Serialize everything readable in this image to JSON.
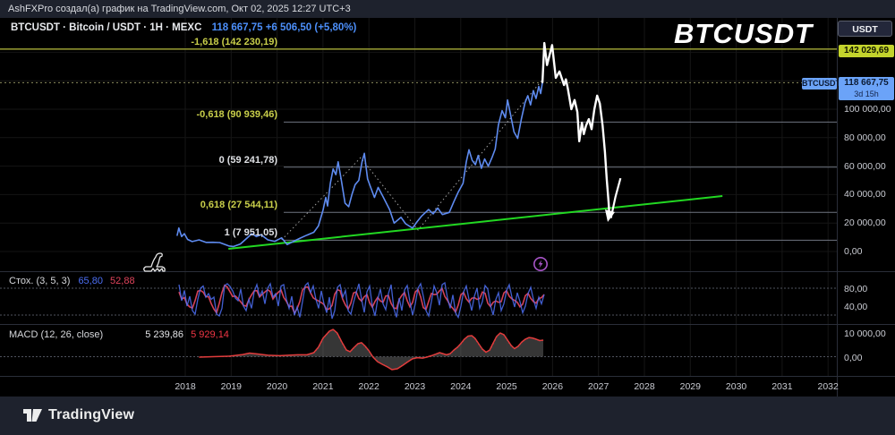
{
  "topbar": {
    "attribution": "AshFXPro создал(а) график на TradingView.com, Окт 02, 2025 12:27 UTC+3"
  },
  "symbol_row": {
    "title": "BTCUSDT · Bitcoin / USDT · 1H · MEXC",
    "quote": "118 667,75  +6 506,50 (+5,80%)"
  },
  "watermark": "BTCUSDT",
  "currency_button": "USDT",
  "price_axis": {
    "alert_tag": {
      "text": "142 029,69",
      "bg": "#c3d32c"
    },
    "symbol_tag": "BTCUSDT",
    "price_tag": {
      "price": "118 667,75",
      "countdown": "3d 15h",
      "bg": "#6ba3f8"
    },
    "ticks": [
      {
        "text": "100 000,00",
        "price": 100000
      },
      {
        "text": "80 000,00",
        "price": 80000
      },
      {
        "text": "60 000,00",
        "price": 60000
      },
      {
        "text": "40 000,00",
        "price": 40000
      },
      {
        "text": "20 000,00",
        "price": 20000
      },
      {
        "text": "0,00",
        "price": 0
      }
    ]
  },
  "fib_levels": [
    {
      "label": "-1,618 (142 230,19)",
      "price": 142230.19,
      "color": "#c9cf4a",
      "full_width": true
    },
    {
      "label": "-0,618 (90 939,46)",
      "price": 90939.46,
      "color": "#c9cf4a",
      "full_width": false
    },
    {
      "label": "0 (59 241,78)",
      "price": 59241.78,
      "color": "#dfe1e5",
      "full_width": false
    },
    {
      "label": "0,618 (27 544,11)",
      "price": 27544.11,
      "color": "#c9cf4a",
      "full_width": false
    },
    {
      "label": "1 (7 951,05)",
      "price": 7951.05,
      "color": "#dfe1e5",
      "full_width": false
    }
  ],
  "current_price_line": {
    "price": 118667.75
  },
  "stoch_panel": {
    "label": "Стох. (3, 5, 3)",
    "k_value": "65,80",
    "d_value": "52,88",
    "k_color": "#4c6ff5",
    "d_color": "#e0445c",
    "ticks": [
      {
        "text": "80,00",
        "v": 80
      },
      {
        "text": "40,00",
        "v": 40
      }
    ],
    "bands": [
      80,
      20
    ]
  },
  "macd_panel": {
    "label": "MACD (12, 26, close)",
    "hist_value": "5 239,86",
    "signal_value": "5 929,14",
    "hist_value_color": "#e4e5e8",
    "signal_value_color": "#f23645",
    "ticks": [
      {
        "text": "10 000,00",
        "v": 10000
      },
      {
        "text": "0,00",
        "v": 0
      }
    ]
  },
  "time_axis": {
    "years": [
      2018,
      2019,
      2020,
      2021,
      2022,
      2023,
      2024,
      2025,
      2026,
      2027,
      2028,
      2029,
      2030,
      2031,
      2032
    ]
  },
  "footer": {
    "brand": "TradingView"
  },
  "icons": {
    "dinosaur": "dinosaur-icon",
    "lightning": "lightning-bolt-icon",
    "lightning_color": "#a855c8"
  },
  "chart_data": [
    {
      "type": "line",
      "title": "BTCUSDT price with Fibonacci extension and projection",
      "ylabel": "USDT",
      "ylim": [
        0,
        160000
      ],
      "x_range_years": [
        2017.8,
        2032.5
      ],
      "series": [
        {
          "name": "btc-price-history",
          "color": "#5e8bf0",
          "units": "thousand-usdt",
          "points": [
            [
              2017.82,
              11
            ],
            [
              2017.86,
              16.5
            ],
            [
              2017.92,
              10.5
            ],
            [
              2017.98,
              12.5
            ],
            [
              2018.05,
              8.5
            ],
            [
              2018.15,
              7
            ],
            [
              2018.3,
              8.2
            ],
            [
              2018.45,
              6.4
            ],
            [
              2018.6,
              6.5
            ],
            [
              2018.75,
              6.3
            ],
            [
              2018.95,
              3.9
            ],
            [
              2019.05,
              3.5
            ],
            [
              2019.2,
              5.3
            ],
            [
              2019.45,
              12.5
            ],
            [
              2019.55,
              10.5
            ],
            [
              2019.65,
              11.8
            ],
            [
              2019.8,
              8.2
            ],
            [
              2019.95,
              7.2
            ],
            [
              2020.1,
              9.6
            ],
            [
              2020.22,
              4.9
            ],
            [
              2020.35,
              7
            ],
            [
              2020.5,
              9.4
            ],
            [
              2020.65,
              11.5
            ],
            [
              2020.8,
              13.5
            ],
            [
              2020.9,
              18
            ],
            [
              2021.0,
              29
            ],
            [
              2021.06,
              38
            ],
            [
              2021.1,
              32
            ],
            [
              2021.16,
              48
            ],
            [
              2021.22,
              58
            ],
            [
              2021.28,
              54
            ],
            [
              2021.33,
              63
            ],
            [
              2021.4,
              50
            ],
            [
              2021.48,
              34
            ],
            [
              2021.56,
              31.5
            ],
            [
              2021.63,
              40
            ],
            [
              2021.7,
              47
            ],
            [
              2021.78,
              50
            ],
            [
              2021.85,
              63
            ],
            [
              2021.9,
              69
            ],
            [
              2021.97,
              51
            ],
            [
              2022.05,
              44
            ],
            [
              2022.12,
              38
            ],
            [
              2022.2,
              45
            ],
            [
              2022.3,
              39
            ],
            [
              2022.45,
              29.5
            ],
            [
              2022.55,
              20
            ],
            [
              2022.7,
              24
            ],
            [
              2022.8,
              19.5
            ],
            [
              2022.95,
              16.5
            ],
            [
              2023.05,
              21
            ],
            [
              2023.15,
              25
            ],
            [
              2023.3,
              29.5
            ],
            [
              2023.4,
              26.5
            ],
            [
              2023.5,
              30.5
            ],
            [
              2023.6,
              26
            ],
            [
              2023.75,
              27.5
            ],
            [
              2023.85,
              35
            ],
            [
              2023.95,
              42
            ],
            [
              2024.05,
              48
            ],
            [
              2024.12,
              63
            ],
            [
              2024.18,
              71.5
            ],
            [
              2024.25,
              64
            ],
            [
              2024.32,
              61
            ],
            [
              2024.38,
              67.5
            ],
            [
              2024.45,
              58.5
            ],
            [
              2024.52,
              65
            ],
            [
              2024.6,
              60
            ],
            [
              2024.68,
              66
            ],
            [
              2024.75,
              72
            ],
            [
              2024.82,
              89
            ],
            [
              2024.9,
              99
            ],
            [
              2024.97,
              94
            ],
            [
              2025.02,
              106.5
            ],
            [
              2025.08,
              97
            ],
            [
              2025.16,
              84
            ],
            [
              2025.24,
              79.5
            ],
            [
              2025.32,
              93
            ],
            [
              2025.4,
              104.5
            ],
            [
              2025.46,
              109.5
            ],
            [
              2025.52,
              103
            ],
            [
              2025.58,
              113
            ],
            [
              2025.64,
              107.5
            ],
            [
              2025.7,
              116
            ],
            [
              2025.74,
              111
            ],
            [
              2025.78,
              118.9
            ]
          ]
        },
        {
          "name": "white-projection",
          "color": "#ffffff",
          "units": "thousand-usdt",
          "points": [
            [
              2025.78,
              118.9
            ],
            [
              2025.82,
              146.5
            ],
            [
              2025.88,
              131
            ],
            [
              2025.99,
              145
            ],
            [
              2026.07,
              122
            ],
            [
              2026.15,
              126.5
            ],
            [
              2026.25,
              117
            ],
            [
              2026.29,
              121
            ],
            [
              2026.33,
              115
            ],
            [
              2026.41,
              100
            ],
            [
              2026.48,
              106.5
            ],
            [
              2026.54,
              98
            ],
            [
              2026.58,
              77.5
            ],
            [
              2026.64,
              90.5
            ],
            [
              2026.68,
              82.5
            ],
            [
              2026.73,
              88.5
            ],
            [
              2026.79,
              93
            ],
            [
              2026.85,
              86
            ],
            [
              2026.91,
              100
            ],
            [
              2026.97,
              109.5
            ],
            [
              2027.03,
              104
            ],
            [
              2027.09,
              88.5
            ],
            [
              2027.14,
              70
            ],
            [
              2027.18,
              51
            ],
            [
              2027.22,
              34.5
            ],
            [
              2027.24,
              24
            ]
          ]
        },
        {
          "name": "white-bounce-arrow",
          "color": "#ffffff",
          "units": "thousand-usdt",
          "points": [
            [
              2027.27,
              23.5
            ],
            [
              2027.37,
              38.5
            ],
            [
              2027.48,
              51.5
            ]
          ]
        },
        {
          "name": "green-trendline",
          "color": "#22d822",
          "units": "thousand-usdt",
          "points": [
            [
              2018.94,
              1.9
            ],
            [
              2029.7,
              39
            ]
          ]
        },
        {
          "name": "dotted-anchor-line",
          "color": "#c8c8c8",
          "units": "thousand-usdt",
          "style": "dotted",
          "points": [
            [
              2020.1,
              8.2
            ],
            [
              2021.82,
              66
            ],
            [
              2023.07,
              15.1
            ],
            [
              2025.78,
              120.8
            ]
          ]
        }
      ]
    },
    {
      "type": "line",
      "title": "Stochastic (3, 5, 3)",
      "ylim": [
        0,
        100
      ],
      "bands": [
        80,
        20
      ],
      "x_start_year": 2017.86,
      "x_step_years": 0.0585,
      "k_values": [
        88,
        52,
        75,
        40,
        62,
        30,
        22,
        55,
        80,
        85,
        60,
        68,
        55,
        60,
        22,
        18,
        35,
        86,
        90,
        84,
        74,
        58,
        52,
        78,
        40,
        30,
        55,
        35,
        72,
        88,
        62,
        74,
        45,
        80,
        90,
        60,
        68,
        40,
        85,
        88,
        55,
        35,
        62,
        20,
        38,
        15,
        50,
        86,
        92,
        70,
        85,
        55,
        35,
        74,
        45,
        25,
        60,
        12,
        30,
        82,
        88,
        60,
        75,
        30,
        22,
        48,
        70,
        90,
        55,
        26,
        72,
        85,
        40,
        18,
        55,
        78,
        45,
        32,
        68,
        88,
        35,
        15,
        58,
        30,
        76,
        86,
        50,
        20,
        45,
        80,
        90,
        62,
        30,
        18,
        50,
        85,
        70,
        42,
        88,
        92,
        58,
        35,
        65,
        25,
        15,
        40,
        72,
        85,
        55,
        30,
        62,
        80,
        35,
        50,
        86,
        78,
        42,
        20,
        55,
        70,
        30,
        45,
        75,
        88,
        60,
        38,
        70,
        50,
        25,
        40,
        68,
        82,
        55,
        35,
        60,
        45,
        66
      ]
    },
    {
      "type": "bar",
      "title": "MACD (12, 26, close)",
      "ylim": [
        -12000,
        12000
      ],
      "macd_points": [
        [
          2018.3,
          -200
        ],
        [
          2018.6,
          0
        ],
        [
          2018.95,
          200
        ],
        [
          2019.25,
          900
        ],
        [
          2019.4,
          1500
        ],
        [
          2019.6,
          1100
        ],
        [
          2019.8,
          600
        ],
        [
          2020.05,
          400
        ],
        [
          2020.25,
          600
        ],
        [
          2020.45,
          800
        ],
        [
          2020.65,
          800
        ],
        [
          2020.8,
          1700
        ],
        [
          2020.9,
          4000
        ],
        [
          2021.0,
          7800
        ],
        [
          2021.14,
          10800
        ],
        [
          2021.22,
          11500
        ],
        [
          2021.31,
          10000
        ],
        [
          2021.41,
          6200
        ],
        [
          2021.51,
          2800
        ],
        [
          2021.59,
          2100
        ],
        [
          2021.66,
          3600
        ],
        [
          2021.76,
          5500
        ],
        [
          2021.84,
          5900
        ],
        [
          2021.92,
          4400
        ],
        [
          2022.0,
          2500
        ],
        [
          2022.09,
          -200
        ],
        [
          2022.19,
          -2100
        ],
        [
          2022.29,
          -3200
        ],
        [
          2022.41,
          -4400
        ],
        [
          2022.5,
          -5500
        ],
        [
          2022.62,
          -5100
        ],
        [
          2022.74,
          -3600
        ],
        [
          2022.85,
          -2100
        ],
        [
          2022.95,
          -900
        ],
        [
          2023.05,
          -400
        ],
        [
          2023.17,
          -600
        ],
        [
          2023.26,
          -200
        ],
        [
          2023.36,
          400
        ],
        [
          2023.46,
          1100
        ],
        [
          2023.54,
          1700
        ],
        [
          2023.61,
          1300
        ],
        [
          2023.69,
          800
        ],
        [
          2023.77,
          1300
        ],
        [
          2023.85,
          2800
        ],
        [
          2023.93,
          4000
        ],
        [
          2024.0,
          5500
        ],
        [
          2024.08,
          7400
        ],
        [
          2024.16,
          8700
        ],
        [
          2024.24,
          8900
        ],
        [
          2024.31,
          7800
        ],
        [
          2024.39,
          5500
        ],
        [
          2024.47,
          3200
        ],
        [
          2024.55,
          1900
        ],
        [
          2024.63,
          2800
        ],
        [
          2024.7,
          5500
        ],
        [
          2024.78,
          8500
        ],
        [
          2024.86,
          10000
        ],
        [
          2024.94,
          9300
        ],
        [
          2025.02,
          7000
        ],
        [
          2025.1,
          4700
        ],
        [
          2025.17,
          3400
        ],
        [
          2025.25,
          4400
        ],
        [
          2025.33,
          6200
        ],
        [
          2025.41,
          7400
        ],
        [
          2025.49,
          8100
        ],
        [
          2025.56,
          7900
        ],
        [
          2025.64,
          7400
        ],
        [
          2025.72,
          6800
        ],
        [
          2025.8,
          7000
        ]
      ],
      "bar_color": "#4e4e4e",
      "line_color": "#e23c3c"
    }
  ]
}
